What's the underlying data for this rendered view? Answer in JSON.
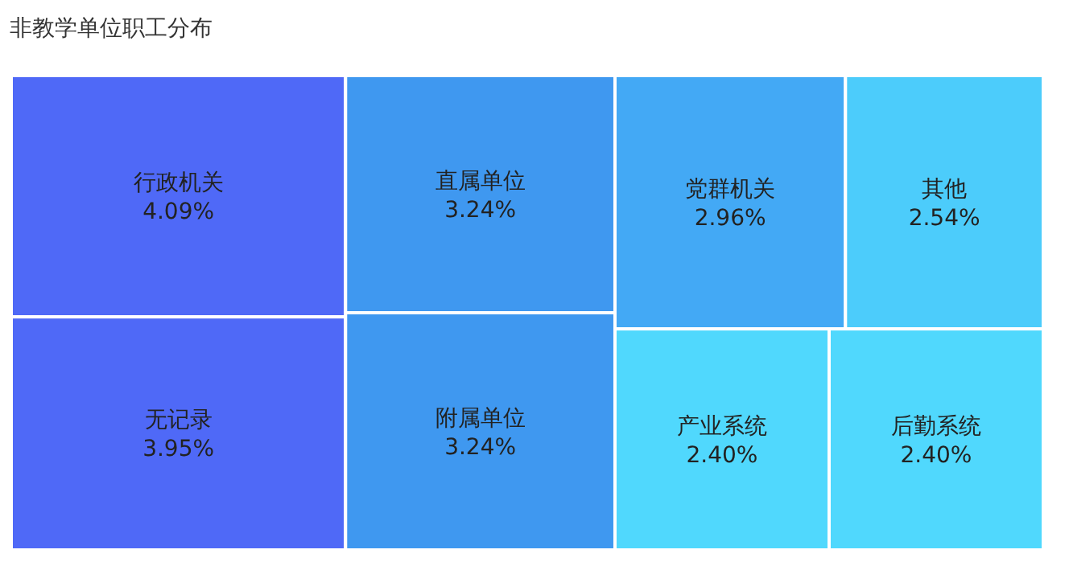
{
  "chart_data": {
    "type": "other",
    "title": "非教学单位职工分布",
    "categories": [
      "行政机关",
      "无记录",
      "直属单位",
      "附属单位",
      "党群机关",
      "其他",
      "产业系统",
      "后勤系统"
    ],
    "values": [
      4.09,
      3.95,
      3.24,
      3.24,
      2.96,
      2.54,
      2.4,
      2.4
    ],
    "value_labels": [
      "4.09%",
      "3.95%",
      "3.24%",
      "3.24%",
      "2.96%",
      "2.54%",
      "2.40%",
      "2.40%"
    ],
    "colors": [
      "#4f69f7",
      "#4f69f7",
      "#3f98f0",
      "#3f98f0",
      "#43a9f5",
      "#4cccfb",
      "#50d8fd",
      "#50d8fd"
    ]
  }
}
